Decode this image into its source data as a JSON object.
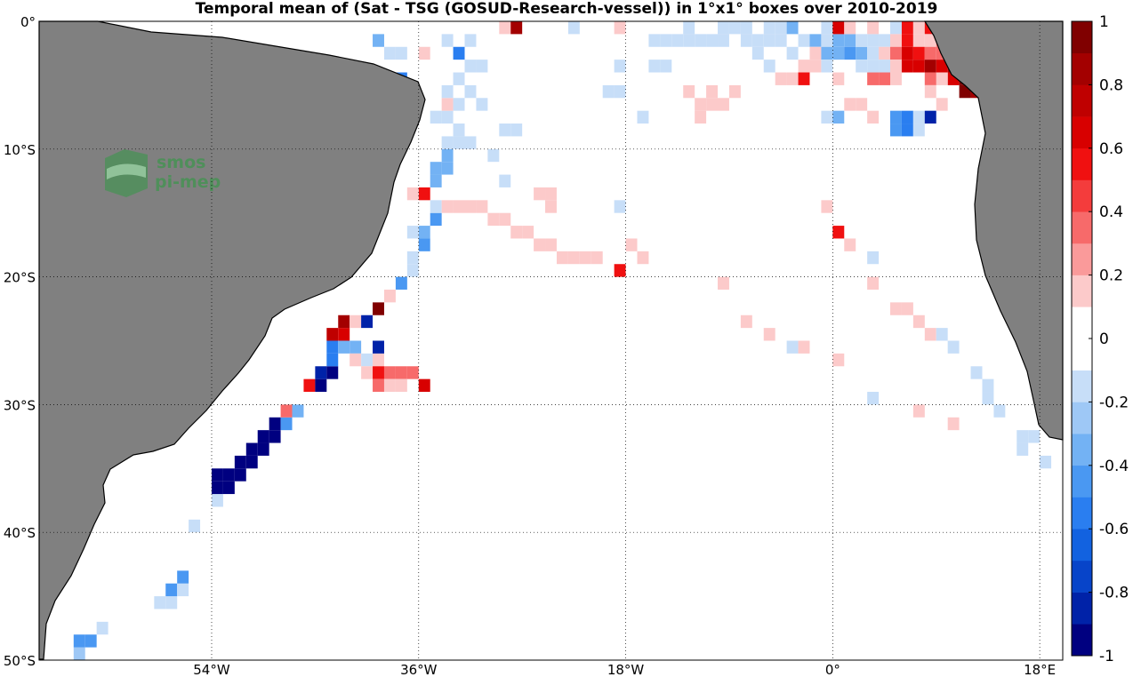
{
  "title": "Temporal mean of (Sat - TSG (GOSUD-Research-vessel)) in 1°x1° boxes over 2010-2019",
  "watermark": {
    "line1": "smos",
    "line2": "pi-mep"
  },
  "lat_ticks": [
    {
      "value": 0,
      "label": "0°"
    },
    {
      "value": -10,
      "label": "10°S"
    },
    {
      "value": -20,
      "label": "20°S"
    },
    {
      "value": -30,
      "label": "30°S"
    },
    {
      "value": -40,
      "label": "40°S"
    },
    {
      "value": -50,
      "label": "50°S"
    }
  ],
  "lon_ticks": [
    {
      "value": -54,
      "label": "54°W"
    },
    {
      "value": -36,
      "label": "36°W"
    },
    {
      "value": -18,
      "label": "18°W"
    },
    {
      "value": 0,
      "label": "0°"
    },
    {
      "value": 18,
      "label": "18°E"
    }
  ],
  "colorbar": {
    "min": -1,
    "max": 1,
    "labels": [
      "1",
      "0.8",
      "0.6",
      "0.4",
      "0.2",
      "0",
      "-0.2",
      "-0.4",
      "-0.6",
      "-0.8",
      "-1"
    ],
    "colors": [
      "#000080",
      "#0022a8",
      "#0744c9",
      "#1262e0",
      "#2a7ef0",
      "#4a98f2",
      "#73b2f4",
      "#9ec8f6",
      "#c7def8",
      "#ffffff",
      "#ffffff",
      "#fccaca",
      "#fa9a9a",
      "#f76a6a",
      "#f43c3c",
      "#f01010",
      "#d80000",
      "#bf0000",
      "#a30000",
      "#800000"
    ]
  },
  "map": {
    "extent": {
      "lon": [
        -69,
        20
      ],
      "lat": [
        -50,
        0
      ]
    },
    "land_color": "#808080",
    "grid": "dotted"
  },
  "cells": [
    [
      -66,
      -49,
      -0.25
    ],
    [
      -66,
      -48,
      -0.4
    ],
    [
      -65,
      -48,
      -0.4
    ],
    [
      -64,
      -47,
      -0.2
    ],
    [
      -59,
      -45,
      -0.2
    ],
    [
      -58,
      -45,
      -0.2
    ],
    [
      -58,
      -44,
      -0.4
    ],
    [
      -57,
      -44,
      -0.2
    ],
    [
      -57,
      -43,
      -0.4
    ],
    [
      -56,
      -39,
      -0.2
    ],
    [
      -54,
      -37,
      -0.2
    ],
    [
      -54,
      -36,
      -1
    ],
    [
      -53,
      -36,
      -1
    ],
    [
      -54,
      -35,
      -1
    ],
    [
      -53,
      -35,
      -1
    ],
    [
      -52,
      -35,
      -1
    ],
    [
      -52,
      -34,
      -1
    ],
    [
      -51,
      -34,
      -1
    ],
    [
      -51,
      -33,
      -1
    ],
    [
      -50,
      -33,
      -1
    ],
    [
      -50,
      -32,
      -1
    ],
    [
      -49,
      -32,
      -1
    ],
    [
      -49,
      -31,
      -1
    ],
    [
      -48,
      -31,
      -0.4
    ],
    [
      -48,
      -30,
      0.3
    ],
    [
      -47,
      -30,
      -0.3
    ],
    [
      -46,
      -28,
      0.5
    ],
    [
      -45,
      -28,
      -1
    ],
    [
      -45,
      -27,
      -0.8
    ],
    [
      -44,
      -27,
      -1
    ],
    [
      -44,
      -26,
      -0.6
    ],
    [
      -44,
      -25,
      -0.6
    ],
    [
      -44,
      -24,
      0.7
    ],
    [
      -43,
      -24,
      0.6
    ],
    [
      -43,
      -23,
      0.9
    ],
    [
      -42,
      -23,
      0.2
    ],
    [
      -43,
      -25,
      -0.3
    ],
    [
      -42,
      -25,
      -0.3
    ],
    [
      -42,
      -26,
      0.2
    ],
    [
      -41,
      -26,
      -0.2
    ],
    [
      -41,
      -27,
      0.2
    ],
    [
      -40,
      -26,
      0.2
    ],
    [
      -40,
      -25,
      -0.8
    ],
    [
      -40,
      -27,
      0.5
    ],
    [
      -40,
      -28,
      0.4
    ],
    [
      -39,
      -27,
      0.4
    ],
    [
      -39,
      -28,
      0.2
    ],
    [
      -38,
      -27,
      0.3
    ],
    [
      -38,
      -28,
      0.2
    ],
    [
      -37,
      -27,
      0.3
    ],
    [
      -36,
      -28,
      0.6
    ],
    [
      -41,
      -23,
      -0.8
    ],
    [
      -40,
      -22,
      1
    ],
    [
      -39,
      -21,
      0.2
    ],
    [
      -38,
      -20,
      -0.4
    ],
    [
      -37,
      -19,
      -0.2
    ],
    [
      -37,
      -18,
      -0.2
    ],
    [
      -36,
      -17,
      -0.4
    ],
    [
      -36,
      -16,
      -0.3
    ],
    [
      -37,
      -16,
      -0.2
    ],
    [
      -35,
      -15,
      -0.4
    ],
    [
      -35,
      -14,
      -0.2
    ],
    [
      -36,
      -13,
      0.5
    ],
    [
      -37,
      -13,
      0.2
    ],
    [
      -35,
      -12,
      -0.3
    ],
    [
      -35,
      -11,
      -0.3
    ],
    [
      -34,
      -11,
      -0.3
    ],
    [
      -34,
      -10,
      -0.3
    ],
    [
      -34,
      -9,
      -0.2
    ],
    [
      -33,
      -9,
      -0.2
    ],
    [
      -33,
      -8,
      -0.2
    ],
    [
      -32,
      -9,
      -0.2
    ],
    [
      -34,
      -7,
      -0.2
    ],
    [
      -35,
      -7,
      -0.2
    ],
    [
      -34,
      -6,
      0.2
    ],
    [
      -33,
      -6,
      -0.2
    ],
    [
      -34,
      -5,
      -0.2
    ],
    [
      -32,
      -5,
      -0.2
    ],
    [
      -31,
      -6,
      -0.2
    ],
    [
      -30,
      -10,
      -0.2
    ],
    [
      -29,
      -12,
      -0.2
    ],
    [
      -33,
      -4,
      -0.2
    ],
    [
      -32,
      -3,
      -0.2
    ],
    [
      -31,
      -3,
      -0.2
    ],
    [
      -33,
      -2,
      -0.6
    ],
    [
      -32,
      -1,
      -0.2
    ],
    [
      -38,
      -4,
      -0.6
    ],
    [
      -38,
      -2,
      -0.2
    ],
    [
      -40,
      -1,
      -0.3
    ],
    [
      -39,
      -2,
      -0.2
    ],
    [
      -36,
      -2,
      0.2
    ],
    [
      -34,
      -1,
      -0.2
    ],
    [
      -29,
      -8,
      -0.2
    ],
    [
      -28,
      -8,
      -0.2
    ],
    [
      -29,
      0,
      0.2
    ],
    [
      -28,
      0,
      0.8
    ],
    [
      -23,
      0,
      -0.2
    ],
    [
      -19,
      0,
      0.2
    ],
    [
      -34,
      -14,
      0.2
    ],
    [
      -33,
      -14,
      0.2
    ],
    [
      -32,
      -14,
      0.2
    ],
    [
      -31,
      -14,
      0.2
    ],
    [
      -30,
      -15,
      0.2
    ],
    [
      -29,
      -15,
      0.2
    ],
    [
      -28,
      -16,
      0.2
    ],
    [
      -27,
      -16,
      0.2
    ],
    [
      -26,
      -17,
      0.2
    ],
    [
      -25,
      -17,
      0.2
    ],
    [
      -26,
      -13,
      0.2
    ],
    [
      -25,
      -13,
      0.2
    ],
    [
      -25,
      -14,
      0.2
    ],
    [
      -24,
      -18,
      0.2
    ],
    [
      -23,
      -18,
      0.2
    ],
    [
      -22,
      -18,
      0.2
    ],
    [
      -21,
      -18,
      0.2
    ],
    [
      -19,
      -19,
      0.5
    ],
    [
      -18,
      -17,
      0.2
    ],
    [
      -17,
      -18,
      0.2
    ],
    [
      -19,
      -14,
      -0.2
    ],
    [
      -19,
      -5,
      -0.2
    ],
    [
      -20,
      -5,
      -0.2
    ],
    [
      -19,
      -3,
      -0.2
    ],
    [
      -16,
      -3,
      -0.2
    ],
    [
      -15,
      -3,
      -0.2
    ],
    [
      -17,
      -7,
      -0.2
    ],
    [
      -13,
      -5,
      0.2
    ],
    [
      -12,
      -6,
      0.2
    ],
    [
      -11,
      -5,
      0.2
    ],
    [
      -11,
      -6,
      0.2
    ],
    [
      -12,
      -7,
      0.2
    ],
    [
      -9,
      -5,
      0.2
    ],
    [
      -10,
      -6,
      0.2
    ],
    [
      -16,
      -1,
      -0.2
    ],
    [
      -15,
      -1,
      -0.2
    ],
    [
      -14,
      -1,
      -0.2
    ],
    [
      -13,
      -1,
      -0.2
    ],
    [
      -13,
      0,
      -0.2
    ],
    [
      -12,
      -1,
      -0.2
    ],
    [
      -11,
      -1,
      -0.2
    ],
    [
      -10,
      -1,
      -0.2
    ],
    [
      -10,
      0,
      -0.2
    ],
    [
      -9,
      0,
      -0.2
    ],
    [
      -8,
      0,
      -0.2
    ],
    [
      -8,
      -1,
      -0.2
    ],
    [
      -7,
      -1,
      -0.2
    ],
    [
      -7,
      -2,
      -0.2
    ],
    [
      -6,
      -1,
      -0.2
    ],
    [
      -6,
      0,
      -0.2
    ],
    [
      -5,
      0,
      -0.2
    ],
    [
      -5,
      -1,
      -0.2
    ],
    [
      -4,
      0,
      -0.3
    ],
    [
      -4,
      -2,
      -0.2
    ],
    [
      -3,
      -1,
      -0.2
    ],
    [
      -3,
      -3,
      0.2
    ],
    [
      -6,
      -3,
      -0.2
    ],
    [
      -5,
      -4,
      0.2
    ],
    [
      -4,
      -4,
      0.2
    ],
    [
      -3,
      -4,
      0.5
    ],
    [
      -2,
      -1,
      -0.3
    ],
    [
      -2,
      -2,
      0.2
    ],
    [
      -2,
      -3,
      0.2
    ],
    [
      -1,
      0,
      -0.2
    ],
    [
      -1,
      -1,
      -0.2
    ],
    [
      -1,
      -2,
      -0.3
    ],
    [
      -1,
      -3,
      -0.2
    ],
    [
      0,
      -1,
      -0.3
    ],
    [
      0,
      0,
      0.6
    ],
    [
      0,
      -2,
      -0.3
    ],
    [
      0,
      -4,
      0.2
    ],
    [
      1,
      -1,
      -0.3
    ],
    [
      1,
      -2,
      -0.4
    ],
    [
      1,
      0,
      0.2
    ],
    [
      2,
      -2,
      -0.3
    ],
    [
      2,
      -1,
      -0.2
    ],
    [
      2,
      -3,
      -0.2
    ],
    [
      3,
      -1,
      -0.2
    ],
    [
      3,
      -2,
      -0.2
    ],
    [
      3,
      -4,
      0.3
    ],
    [
      3,
      0,
      0.2
    ],
    [
      3,
      -3,
      -0.2
    ],
    [
      4,
      -1,
      -0.2
    ],
    [
      4,
      -2,
      0.2
    ],
    [
      4,
      -3,
      -0.2
    ],
    [
      4,
      -4,
      0.3
    ],
    [
      5,
      0,
      -0.2
    ],
    [
      5,
      -1,
      0.2
    ],
    [
      5,
      -2,
      0.3
    ],
    [
      5,
      -3,
      0.2
    ],
    [
      5,
      -4,
      0.2
    ],
    [
      6,
      0,
      0.5
    ],
    [
      6,
      -1,
      0.5
    ],
    [
      6,
      -2,
      0.6
    ],
    [
      6,
      -3,
      0.6
    ],
    [
      7,
      0,
      0.2
    ],
    [
      7,
      -1,
      0.2
    ],
    [
      7,
      -2,
      0.5
    ],
    [
      7,
      -3,
      0.6
    ],
    [
      8,
      0,
      0.5
    ],
    [
      8,
      -1,
      0.2
    ],
    [
      8,
      -2,
      0.4
    ],
    [
      8,
      -3,
      0.8
    ],
    [
      9,
      -1,
      0.3
    ],
    [
      9,
      -2,
      0.3
    ],
    [
      9,
      -3,
      0.6
    ],
    [
      10,
      -1,
      -0.3
    ],
    [
      10,
      -2,
      -0.2
    ],
    [
      10,
      -3,
      0.9
    ],
    [
      10,
      -4,
      0.6
    ],
    [
      11,
      -3,
      1
    ],
    [
      11,
      -4,
      1
    ],
    [
      11,
      -5,
      1
    ],
    [
      12,
      -3,
      1
    ],
    [
      12,
      -4,
      1
    ],
    [
      12,
      -5,
      0.9
    ],
    [
      9,
      -4,
      0.2
    ],
    [
      8,
      -4,
      0.4
    ],
    [
      -1,
      -7,
      -0.2
    ],
    [
      0,
      -7,
      -0.3
    ],
    [
      1,
      -6,
      0.2
    ],
    [
      2,
      -6,
      0.2
    ],
    [
      3,
      -7,
      0.2
    ],
    [
      5,
      -7,
      -0.5
    ],
    [
      5,
      -8,
      -0.5
    ],
    [
      6,
      -7,
      -0.6
    ],
    [
      6,
      -8,
      -0.6
    ],
    [
      7,
      -7,
      -0.2
    ],
    [
      7,
      -8,
      -0.2
    ],
    [
      8,
      -7,
      -0.8
    ],
    [
      9,
      -6,
      0.2
    ],
    [
      8,
      -5,
      0.2
    ],
    [
      -1,
      -14,
      0.2
    ],
    [
      0,
      -16,
      0.5
    ],
    [
      1,
      -17,
      0.2
    ],
    [
      3,
      -18,
      -0.2
    ],
    [
      3,
      -20,
      0.2
    ],
    [
      -10,
      -20,
      0.2
    ],
    [
      -8,
      -23,
      0.2
    ],
    [
      -6,
      -24,
      0.2
    ],
    [
      -4,
      -25,
      -0.2
    ],
    [
      -3,
      -25,
      0.2
    ],
    [
      0,
      -26,
      0.2
    ],
    [
      5,
      -22,
      0.2
    ],
    [
      6,
      -22,
      0.2
    ],
    [
      7,
      -23,
      0.2
    ],
    [
      8,
      -24,
      0.2
    ],
    [
      9,
      -24,
      -0.2
    ],
    [
      10,
      -25,
      -0.2
    ],
    [
      12,
      -27,
      -0.2
    ],
    [
      13,
      -28,
      -0.2
    ],
    [
      13,
      -29,
      -0.2
    ],
    [
      14,
      -30,
      -0.2
    ],
    [
      16,
      -32,
      -0.2
    ],
    [
      17,
      -32,
      -0.2
    ],
    [
      16,
      -33,
      -0.2
    ],
    [
      18,
      -34,
      -0.2
    ],
    [
      3,
      -29,
      -0.2
    ],
    [
      7,
      -30,
      0.2
    ],
    [
      10,
      -31,
      0.2
    ]
  ]
}
